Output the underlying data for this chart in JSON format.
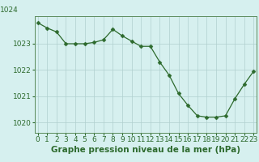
{
  "x": [
    0,
    1,
    2,
    3,
    4,
    5,
    6,
    7,
    8,
    9,
    10,
    11,
    12,
    13,
    14,
    15,
    16,
    17,
    18,
    19,
    20,
    21,
    22,
    23
  ],
  "y": [
    1023.8,
    1023.6,
    1023.45,
    1023.0,
    1023.0,
    1023.0,
    1023.05,
    1023.15,
    1023.55,
    1023.3,
    1023.1,
    1022.9,
    1022.9,
    1022.3,
    1021.8,
    1021.1,
    1020.65,
    1020.25,
    1020.2,
    1020.2,
    1020.25,
    1020.9,
    1021.45,
    1021.95
  ],
  "line_color": "#2d6a2d",
  "marker": "D",
  "marker_size": 2.5,
  "bg_color": "#d6f0ef",
  "grid_color": "#b0cfce",
  "axis_color": "#5a8a5a",
  "label_color": "#2d6a2d",
  "ylim": [
    1019.6,
    1024.3
  ],
  "yticks": [
    1020,
    1021,
    1022,
    1023,
    1024
  ],
  "xticks": [
    0,
    1,
    2,
    3,
    4,
    5,
    6,
    7,
    8,
    9,
    10,
    11,
    12,
    13,
    14,
    15,
    16,
    17,
    18,
    19,
    20,
    21,
    22,
    23
  ],
  "xlabel": "Graphe pression niveau de la mer (hPa)",
  "tick_fontsize": 6.5,
  "label_fontsize": 7.5
}
